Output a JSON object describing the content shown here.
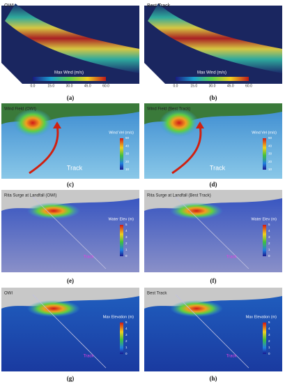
{
  "panels": [
    {
      "label": "(a)",
      "title": "OWI",
      "legend_title": "Max Wind (m/s)",
      "legend_ticks": [
        "0.0",
        "15.0",
        "30.0",
        "45.0",
        "60.0"
      ]
    },
    {
      "label": "(b)",
      "title": "Best Track",
      "legend_title": "Max Wind (m/s)",
      "legend_ticks": [
        "0.0",
        "15.0",
        "30.0",
        "45.0",
        "60.0"
      ]
    },
    {
      "label": "(c)",
      "title": "Wind Field (OWI)",
      "legend_title": "Wind Vel (m/s)",
      "legend_ticks": [
        "50",
        "40",
        "30",
        "20",
        "10"
      ],
      "annotation": "Track"
    },
    {
      "label": "(d)",
      "title": "Wind Field (Best Track)",
      "legend_title": "Wind Vel (m/s)",
      "legend_ticks": [
        "50",
        "40",
        "30",
        "20",
        "10"
      ],
      "annotation": "Track"
    },
    {
      "label": "(e)",
      "title": "Rita Surge at Landfall (OWI)",
      "legend_title": "Water Elev (m)",
      "legend_ticks": [
        "5",
        "4",
        "3",
        "2",
        "1",
        "0"
      ],
      "annotation": "Track"
    },
    {
      "label": "(f)",
      "title": "Rita Surge at Landfall (Best Track)",
      "legend_title": "Water Elev (m)",
      "legend_ticks": [
        "5",
        "4",
        "3",
        "2",
        "1",
        "0"
      ],
      "annotation": "Track"
    },
    {
      "label": "(g)",
      "title": "OWI",
      "legend_title": "Max Elevation (m)",
      "legend_ticks": [
        "5",
        "4",
        "3",
        "2",
        "1",
        "0"
      ],
      "annotation": "Track"
    },
    {
      "label": "(h)",
      "title": "Best Track",
      "legend_title": "Max Elevation (m)",
      "legend_ticks": [
        "5",
        "4",
        "3",
        "2",
        "1",
        "0"
      ],
      "annotation": "Track"
    }
  ]
}
